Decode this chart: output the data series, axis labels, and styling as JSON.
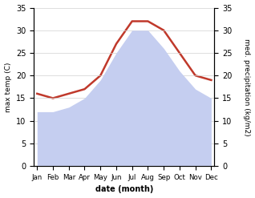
{
  "months": [
    "Jan",
    "Feb",
    "Mar",
    "Apr",
    "May",
    "Jun",
    "Jul",
    "Aug",
    "Sep",
    "Oct",
    "Nov",
    "Dec"
  ],
  "temp": [
    12,
    12,
    13,
    15,
    19,
    25,
    30,
    30,
    26,
    21,
    17,
    15
  ],
  "precip": [
    16,
    15,
    16,
    17,
    20,
    27,
    32,
    32,
    30,
    25,
    20,
    19
  ],
  "temp_fill_color": "#c5cef0",
  "precip_line_color": "#c0392b",
  "ylim": [
    0,
    35
  ],
  "xlabel": "date (month)",
  "ylabel_left": "max temp (C)",
  "ylabel_right": "med. precipitation (kg/m2)",
  "yticks": [
    0,
    5,
    10,
    15,
    20,
    25,
    30,
    35
  ],
  "grid_color": "#d0d0d0"
}
